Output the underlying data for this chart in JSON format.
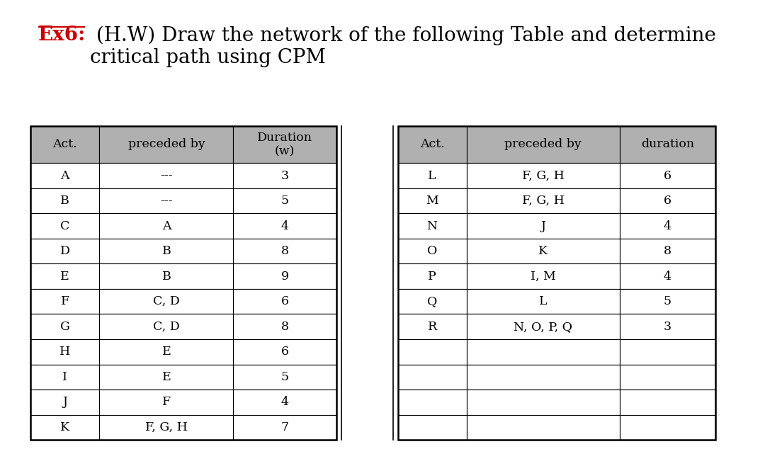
{
  "title_prefix": "Ex6:",
  "title_prefix_color": "#cc0000",
  "title_rest": " (H.W) Draw the network of the following Table and determine\ncritical path using CPM",
  "title_fontsize": 20,
  "background_color": "#ffffff",
  "header_bg": "#b0b0b0",
  "border_color": "#000000",
  "cell_bg_white": "#ffffff",
  "left_table": {
    "headers": [
      "Act.",
      "preceded by",
      "Duration\n(w)"
    ],
    "rows": [
      [
        "A",
        "---",
        "3"
      ],
      [
        "B",
        "---",
        "5"
      ],
      [
        "C",
        "A",
        "4"
      ],
      [
        "D",
        "B",
        "8"
      ],
      [
        "E",
        "B",
        "9"
      ],
      [
        "F",
        "C, D",
        "6"
      ],
      [
        "G",
        "C, D",
        "8"
      ],
      [
        "H",
        "E",
        "6"
      ],
      [
        "I",
        "E",
        "5"
      ],
      [
        "J",
        "F",
        "4"
      ],
      [
        "K",
        "F, G, H",
        "7"
      ]
    ]
  },
  "right_table": {
    "headers": [
      "Act.",
      "preceded by",
      "duration"
    ],
    "rows": [
      [
        "L",
        "F, G, H",
        "6"
      ],
      [
        "M",
        "F, G, H",
        "6"
      ],
      [
        "N",
        "J",
        "4"
      ],
      [
        "O",
        "K",
        "8"
      ],
      [
        "P",
        "I, M",
        "4"
      ],
      [
        "Q",
        "L",
        "5"
      ],
      [
        "R",
        "N, O, P, Q",
        "3"
      ],
      [
        "",
        "",
        ""
      ],
      [
        "",
        "",
        ""
      ],
      [
        "",
        "",
        ""
      ],
      [
        "",
        "",
        ""
      ]
    ]
  }
}
